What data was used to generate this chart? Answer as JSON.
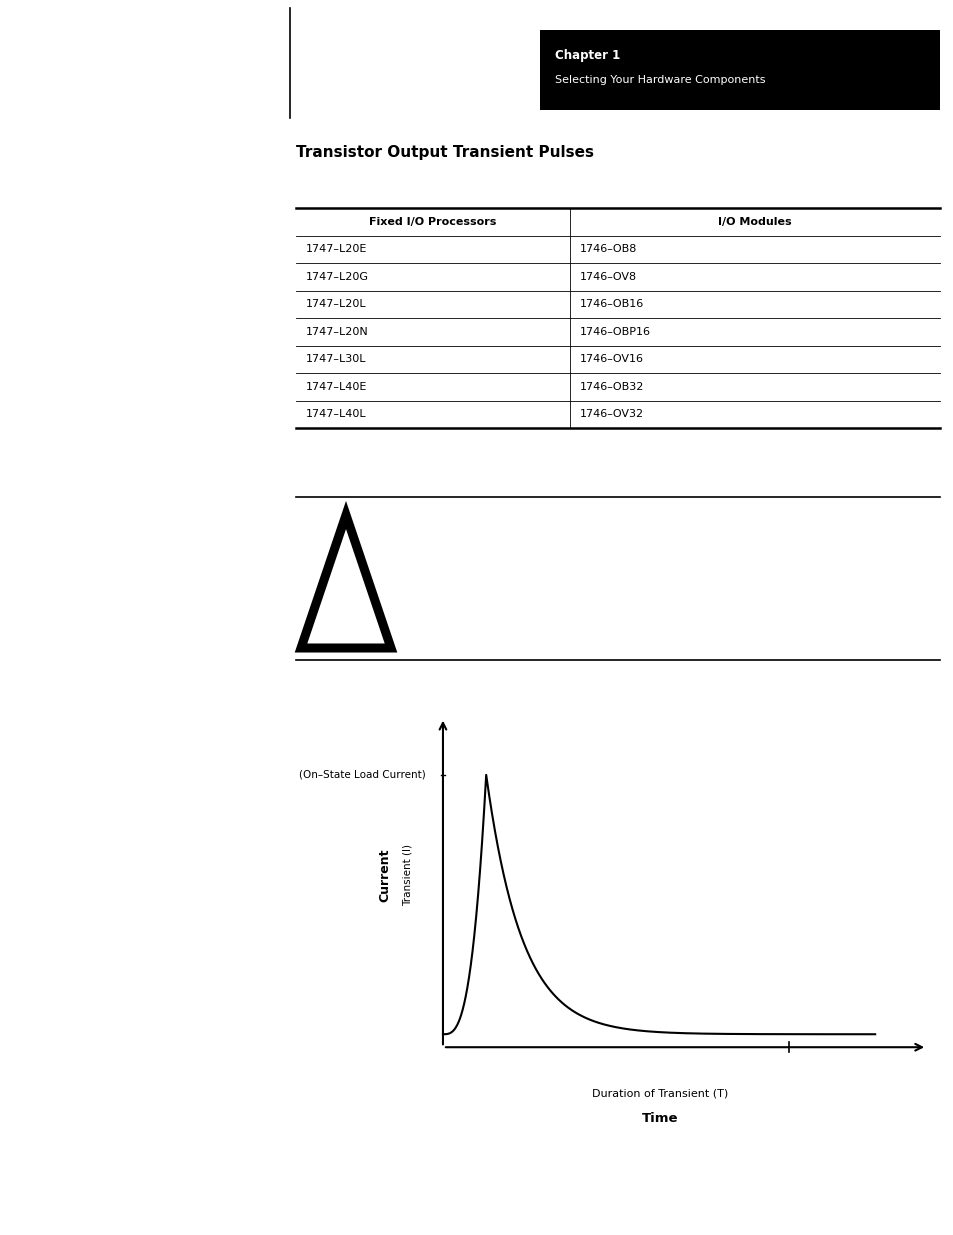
{
  "page_title": "Transistor Output Transient Pulses",
  "chapter_box_text1": "Chapter 1",
  "chapter_box_text2": "Selecting Your Hardware Components",
  "table_col1_header": "Fixed I/O Processors",
  "table_col2_header": "I/O Modules",
  "table_col1": [
    "1747–L20E",
    "1747–L20G",
    "1747–L20L",
    "1747–L20N",
    "1747–L30L",
    "1747–L40E",
    "1747–L40L"
  ],
  "table_col2": [
    "1746–OB8",
    "1746–OV8",
    "1746–OB16",
    "1746–OBP16",
    "1746–OV16",
    "1746–OB32",
    "1746–OV32"
  ],
  "ylabel_main": "Current",
  "ylabel_sub": "Transient (I)",
  "xlabel_main": "Time",
  "xlabel_sub": "Duration of Transient (T)",
  "on_state_label": "(On–State Load Current)",
  "bg_color": "#ffffff",
  "header_bg": "#000000",
  "header_text_color": "#ffffff"
}
